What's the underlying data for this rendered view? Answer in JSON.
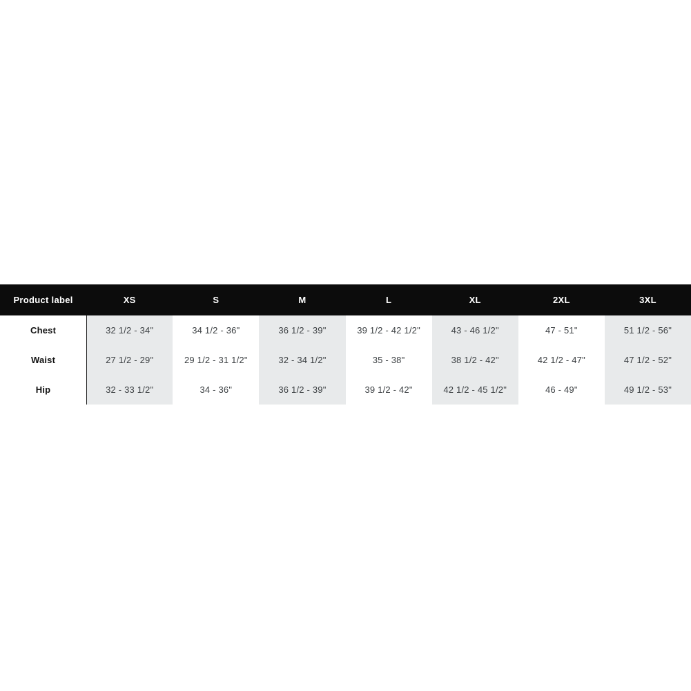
{
  "size_chart": {
    "columns": [
      "Product label",
      "XS",
      "S",
      "M",
      "L",
      "XL",
      "2XL",
      "3XL"
    ],
    "rows": [
      {
        "label": "Chest",
        "values": [
          "32 1/2 - 34\"",
          "34 1/2 - 36\"",
          "36 1/2 - 39\"",
          "39 1/2 - 42 1/2\"",
          "43 - 46 1/2\"",
          "47 - 51\"",
          "51 1/2 - 56\""
        ]
      },
      {
        "label": "Waist",
        "values": [
          "27 1/2 - 29\"",
          "29 1/2 - 31 1/2\"",
          "32 - 34 1/2\"",
          "35 - 38\"",
          "38 1/2 - 42\"",
          "42 1/2 - 47\"",
          "47 1/2 - 52\""
        ]
      },
      {
        "label": "Hip",
        "values": [
          "32 - 33 1/2\"",
          "34 - 36\"",
          "36 1/2 - 39\"",
          "39 1/2 - 42\"",
          "42 1/2 - 45 1/2\"",
          "46 - 49\"",
          "49 1/2 - 53\""
        ]
      }
    ],
    "colors": {
      "header_bg": "#0c0c0c",
      "header_text": "#ffffff",
      "shaded_column_bg": "#e8eaeb",
      "cell_text": "#3c4043",
      "row_label_text": "#111111",
      "divider": "#1f1f1f"
    }
  }
}
